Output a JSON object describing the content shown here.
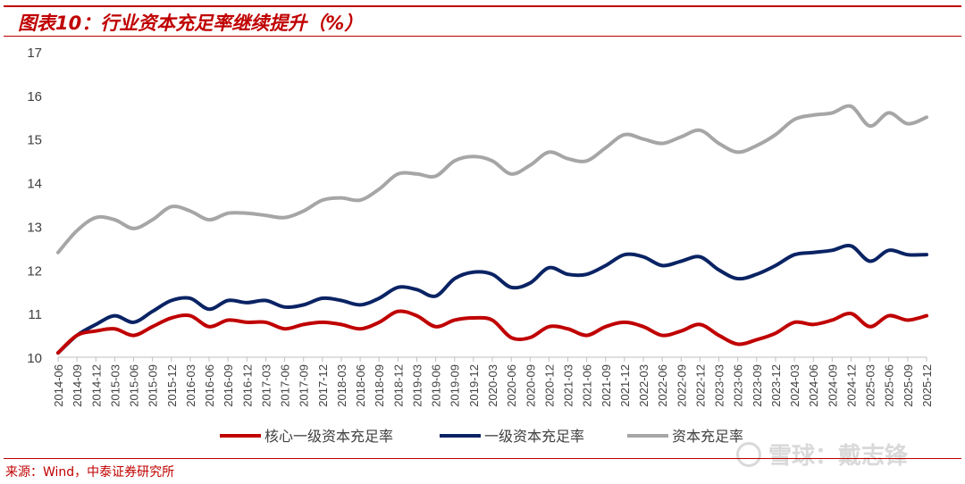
{
  "title": "图表10：行业资本充足率继续提升（%）",
  "source": "来源：Wind，中泰证券研究所",
  "watermark": "雪球：戴志锋",
  "colors": {
    "accent": "#c00000",
    "series": [
      "#c00000",
      "#0a2364",
      "#a6a6a6"
    ]
  },
  "chart_data": {
    "type": "line",
    "x": [
      "2014-06",
      "2014-09",
      "2014-12",
      "2015-03",
      "2015-06",
      "2015-09",
      "2015-12",
      "2016-03",
      "2016-06",
      "2016-09",
      "2016-12",
      "2017-03",
      "2017-06",
      "2017-09",
      "2017-12",
      "2018-03",
      "2018-06",
      "2018-09",
      "2018-12",
      "2019-03",
      "2019-06",
      "2019-09",
      "2019-12",
      "2020-03",
      "2020-06",
      "2020-09",
      "2020-12",
      "2021-03",
      "2021-06",
      "2021-09",
      "2021-12",
      "2022-03",
      "2022-06",
      "2022-09",
      "2022-12",
      "2023-03",
      "2023-06",
      "2023-09",
      "2023-12",
      "2024-03",
      "2024-06",
      "2024-09",
      "2024-12",
      "2025-03",
      "2025-06",
      "2025-09",
      "2025-12"
    ],
    "ylim": [
      10,
      17
    ],
    "yticks": [
      "10",
      "11",
      "12",
      "13",
      "14",
      "15",
      "16",
      "17"
    ],
    "grid": false,
    "legend_position": "bottom",
    "series": [
      {
        "name": "核心一级资本充足率",
        "values": [
          10.1,
          10.5,
          10.6,
          10.65,
          10.5,
          10.7,
          10.9,
          10.95,
          10.7,
          10.85,
          10.8,
          10.8,
          10.65,
          10.75,
          10.8,
          10.75,
          10.65,
          10.8,
          11.05,
          10.95,
          10.7,
          10.85,
          10.9,
          10.85,
          10.45,
          10.45,
          10.7,
          10.65,
          10.5,
          10.7,
          10.8,
          10.7,
          10.5,
          10.6,
          10.75,
          10.5,
          10.3,
          10.4,
          10.55,
          10.8,
          10.75,
          10.85,
          11.0,
          10.7,
          10.95,
          10.85,
          10.95
        ]
      },
      {
        "name": "一级资本充足率",
        "values": [
          10.1,
          10.5,
          10.75,
          10.95,
          10.8,
          11.05,
          11.3,
          11.35,
          11.1,
          11.3,
          11.25,
          11.3,
          11.15,
          11.2,
          11.35,
          11.3,
          11.2,
          11.35,
          11.6,
          11.55,
          11.4,
          11.8,
          11.95,
          11.9,
          11.6,
          11.7,
          12.05,
          11.9,
          11.9,
          12.1,
          12.35,
          12.3,
          12.1,
          12.2,
          12.3,
          12.0,
          11.8,
          11.9,
          12.1,
          12.35,
          12.4,
          12.45,
          12.55,
          12.2,
          12.45,
          12.35,
          12.35
        ]
      },
      {
        "name": "资本充足率",
        "values": [
          12.4,
          12.9,
          13.2,
          13.15,
          12.95,
          13.15,
          13.45,
          13.35,
          13.15,
          13.3,
          13.3,
          13.25,
          13.2,
          13.35,
          13.6,
          13.65,
          13.6,
          13.85,
          14.2,
          14.2,
          14.15,
          14.5,
          14.6,
          14.5,
          14.2,
          14.4,
          14.7,
          14.55,
          14.5,
          14.8,
          15.1,
          15.0,
          14.9,
          15.05,
          15.2,
          14.9,
          14.7,
          14.85,
          15.1,
          15.45,
          15.55,
          15.6,
          15.75,
          15.3,
          15.6,
          15.35,
          15.5
        ]
      }
    ]
  }
}
